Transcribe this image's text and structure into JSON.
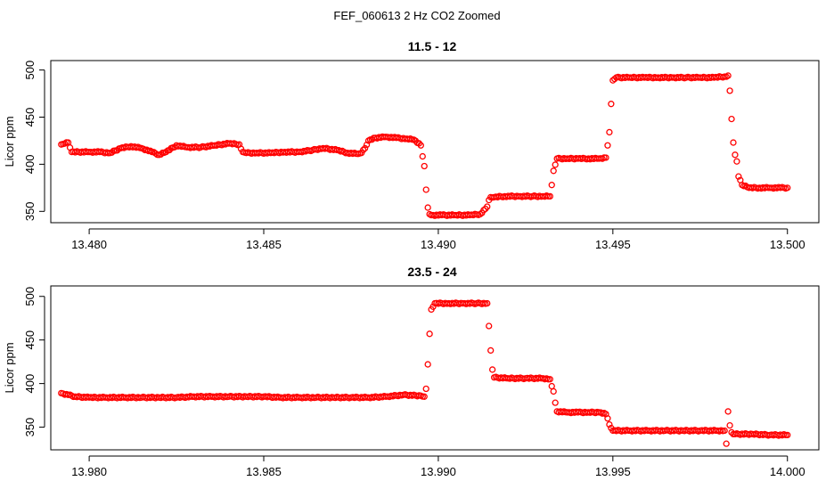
{
  "figure": {
    "title": "FEF_060613  2 Hz CO2 Zoomed"
  },
  "colors": {
    "points": "#ff0000",
    "axes": "#000000",
    "background": "#ffffff"
  },
  "chart_data": [
    {
      "type": "scatter",
      "title": "11.5 - 12",
      "xlabel": "",
      "ylabel": "Licor ppm",
      "xlim": [
        13.4789,
        13.5009
      ],
      "ylim": [
        338,
        510
      ],
      "xticks": [
        13.48,
        13.485,
        13.49,
        13.495,
        13.5
      ],
      "xtick_labels": [
        "13.480",
        "13.485",
        "13.490",
        "13.495",
        "13.500"
      ],
      "yticks": [
        350,
        400,
        450,
        500
      ],
      "ytick_labels": [
        "350",
        "400",
        "450",
        "500"
      ],
      "grid": false,
      "legend": "none",
      "series": [
        {
          "marker": "open-circle",
          "color": "#ff0000",
          "x": [
            13.4792,
            13.4793,
            13.4794,
            13.4795,
            13.4797,
            13.48,
            13.4803,
            13.4806,
            13.4809,
            13.4812,
            13.4815,
            13.4818,
            13.482,
            13.4822,
            13.4825,
            13.4828,
            13.4832,
            13.4836,
            13.484,
            13.4843,
            13.4844,
            13.4845,
            13.4848,
            13.4852,
            13.4856,
            13.486,
            13.4864,
            13.4867,
            13.4871,
            13.4874,
            13.4877,
            13.4878,
            13.4879,
            13.488,
            13.4882,
            13.4885,
            13.4888,
            13.4891,
            13.4893,
            13.4895,
            13.4896,
            13.48965,
            13.4897,
            13.48975,
            13.4898,
            13.4898,
            13.4901,
            13.4905,
            13.4909,
            13.4912,
            13.4914,
            13.49145,
            13.4915,
            13.4916,
            13.4919,
            13.4923,
            13.4927,
            13.493,
            13.4932,
            13.49325,
            13.4933,
            13.4934,
            13.4937,
            13.494,
            13.4943,
            13.4946,
            13.4948,
            13.49485,
            13.4949,
            13.49495,
            13.495,
            13.4951,
            13.4955,
            13.4959,
            13.4963,
            13.4967,
            13.4971,
            13.4975,
            13.4979,
            13.4982,
            13.4983,
            13.49835,
            13.4984,
            13.49845,
            13.4985,
            13.49855,
            13.4986,
            13.4987,
            13.4989,
            13.4992,
            13.4995,
            13.4998,
            13.5
          ],
          "y": [
            421,
            422,
            423,
            413,
            413,
            413,
            413,
            412,
            417,
            419,
            417,
            413,
            410,
            413,
            420,
            418,
            418,
            420,
            422,
            421,
            413,
            412,
            412,
            412,
            413,
            413,
            415,
            417,
            415,
            412,
            411,
            412,
            417,
            425,
            428,
            429,
            428,
            427,
            426,
            420,
            398,
            373,
            354,
            347,
            346,
            346,
            346,
            346,
            346,
            347,
            355,
            362,
            365,
            365,
            366,
            366,
            366,
            366,
            366,
            378,
            393,
            406,
            406,
            406,
            406,
            406,
            407,
            420,
            434,
            464,
            489,
            492,
            492,
            492,
            492,
            492,
            492,
            492,
            492,
            493,
            494,
            478,
            448,
            423,
            410,
            403,
            387,
            378,
            375,
            375,
            375,
            375,
            375
          ]
        }
      ]
    },
    {
      "type": "scatter",
      "title": "23.5 - 24",
      "xlabel": "",
      "ylabel": "Licor ppm",
      "xlim": [
        13.9789,
        14.0009
      ],
      "ylim": [
        324,
        512
      ],
      "xticks": [
        13.98,
        13.985,
        13.99,
        13.995,
        14.0
      ],
      "xtick_labels": [
        "13.980",
        "13.985",
        "13.990",
        "13.995",
        "14.000"
      ],
      "yticks": [
        350,
        400,
        450,
        500
      ],
      "ytick_labels": [
        "350",
        "400",
        "450",
        "500"
      ],
      "grid": false,
      "legend": "none",
      "series": [
        {
          "marker": "open-circle",
          "color": "#ff0000",
          "x": [
            13.9792,
            13.9794,
            13.9796,
            13.98,
            13.9805,
            13.981,
            13.9815,
            13.982,
            13.9825,
            13.983,
            13.9835,
            13.984,
            13.9845,
            13.985,
            13.9855,
            13.986,
            13.9865,
            13.987,
            13.9875,
            13.988,
            13.9885,
            13.989,
            13.9895,
            13.9896,
            13.98965,
            13.9897,
            13.98975,
            13.9898,
            13.9899,
            13.9903,
            13.9907,
            13.9911,
            13.9914,
            13.99145,
            13.9915,
            13.99155,
            13.9916,
            13.992,
            13.9925,
            13.993,
            13.9932,
            13.99325,
            13.9933,
            13.99335,
            13.9934,
            13.9937,
            13.994,
            13.9943,
            13.9946,
            13.9948,
            13.99485,
            13.9949,
            13.99495,
            13.995,
            13.9955,
            13.996,
            13.9965,
            13.997,
            13.9975,
            13.998,
            13.9982,
            13.99825,
            13.9983,
            13.99835,
            13.9984,
            13.99845,
            13.9985,
            13.999,
            13.9995,
            14.0
          ],
          "y": [
            389,
            387,
            385,
            384,
            384,
            384,
            384,
            384,
            384,
            385,
            385,
            385,
            385,
            385,
            384,
            384,
            384,
            384,
            384,
            384,
            385,
            387,
            386,
            385,
            394,
            422,
            457,
            485,
            492,
            492,
            492,
            492,
            492,
            466,
            438,
            416,
            407,
            406,
            406,
            406,
            405,
            397,
            391,
            378,
            368,
            367,
            367,
            367,
            367,
            365,
            360,
            353,
            349,
            346,
            346,
            346,
            346,
            346,
            346,
            346,
            346,
            331,
            368,
            352,
            344,
            342,
            342,
            342,
            341,
            341
          ]
        }
      ]
    }
  ]
}
